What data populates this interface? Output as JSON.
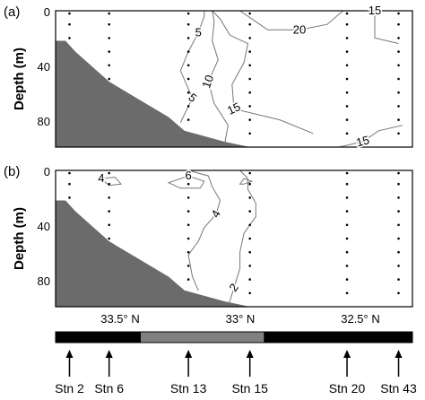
{
  "figure": {
    "panel_labels": [
      "(a)",
      "(b)"
    ],
    "ylabel": "Depth (m)",
    "y_ticks": [
      "0",
      "40",
      "80"
    ],
    "x_ticks": [
      "33.5° N",
      "33° N",
      "32.5° N"
    ],
    "stations": [
      "Stn 2",
      "Stn 6",
      "Stn 13",
      "Stn 15",
      "Stn 20",
      "Stn 43"
    ]
  },
  "chart_data": [
    {
      "type": "contour",
      "panel": "(a)",
      "xlabel": "",
      "ylabel": "Depth (m)",
      "ylim": [
        100,
        0
      ],
      "x_direction": "latitude decreasing to the right",
      "x_ticks": [
        33.5,
        33.0,
        32.5
      ],
      "y_ticks": [
        0,
        40,
        80
      ],
      "contour_labels": [
        "5",
        "20",
        "15",
        "10",
        "5",
        "15",
        "15"
      ],
      "contours": [
        {
          "level": 5,
          "points": [
            [
              33.22,
              82
            ],
            [
              33.16,
              64
            ],
            [
              33.22,
              44
            ],
            [
              33.18,
              30
            ],
            [
              33.13,
              16
            ],
            [
              33.1,
              4
            ],
            [
              33.1,
              0
            ]
          ]
        },
        {
          "level": 10,
          "points": [
            [
              33.0,
              100
            ],
            [
              32.98,
              84
            ],
            [
              33.05,
              68
            ],
            [
              33.08,
              52
            ],
            [
              33.03,
              36
            ],
            [
              33.06,
              22
            ],
            [
              33.05,
              8
            ],
            [
              33.06,
              0
            ]
          ]
        },
        {
          "level": 15,
          "points": [
            [
              33.06,
              0
            ],
            [
              33.02,
              6
            ],
            [
              32.97,
              18
            ],
            [
              32.88,
              24
            ],
            [
              32.9,
              38
            ],
            [
              32.96,
              54
            ],
            [
              32.95,
              72
            ],
            [
              32.72,
              80
            ],
            [
              32.55,
              90
            ]
          ]
        },
        {
          "level": 20,
          "points": [
            [
              32.92,
              0
            ],
            [
              32.86,
              6
            ],
            [
              32.78,
              14
            ],
            [
              32.62,
              14
            ],
            [
              32.48,
              10
            ],
            [
              32.4,
              0
            ]
          ]
        },
        {
          "level": 15,
          "points": [
            [
              32.24,
              0
            ],
            [
              32.24,
              10
            ],
            [
              32.24,
              20
            ],
            [
              32.12,
              24
            ]
          ]
        },
        {
          "level": 15,
          "points": [
            [
              32.42,
              100
            ],
            [
              32.3,
              96
            ],
            [
              32.22,
              88
            ],
            [
              32.1,
              84
            ]
          ]
        }
      ],
      "bathymetry_depth_m": [
        [
          33.8,
          22
        ],
        [
          33.75,
          30
        ],
        [
          33.58,
          52
        ],
        [
          33.28,
          78
        ],
        [
          33.2,
          88
        ],
        [
          33.0,
          96
        ],
        [
          32.87,
          100
        ]
      ],
      "sample_profiles": [
        {
          "lat": 33.78,
          "depths": [
            2,
            10,
            20
          ]
        },
        {
          "lat": 33.58,
          "depths": [
            2,
            10,
            20,
            30,
            40,
            50
          ]
        },
        {
          "lat": 33.18,
          "depths": [
            2,
            10,
            20,
            30,
            40,
            50,
            60,
            70,
            80
          ]
        },
        {
          "lat": 32.87,
          "depths": [
            2,
            10,
            20,
            30,
            40,
            50,
            60,
            70,
            80,
            90
          ]
        },
        {
          "lat": 32.38,
          "depths": [
            2,
            10,
            20,
            30,
            40,
            50,
            60,
            70,
            80,
            90
          ]
        },
        {
          "lat": 32.12,
          "depths": [
            2,
            10,
            20,
            30,
            40,
            50,
            60,
            70,
            80,
            90
          ]
        }
      ]
    },
    {
      "type": "contour",
      "panel": "(b)",
      "xlabel": "",
      "ylabel": "Depth (m)",
      "ylim": [
        100,
        0
      ],
      "x_direction": "latitude decreasing to the right",
      "x_ticks": [
        33.5,
        33.0,
        32.5
      ],
      "y_ticks": [
        0,
        40,
        80
      ],
      "contour_labels": [
        "4",
        "6",
        "4",
        "2"
      ],
      "contours": [
        {
          "level": 4,
          "points": [
            [
              33.62,
              6
            ],
            [
              33.58,
              11
            ],
            [
              33.52,
              10
            ],
            [
              33.55,
              5
            ],
            [
              33.62,
              6
            ]
          ],
          "closed": true
        },
        {
          "level": 6,
          "points": [
            [
              33.28,
              9
            ],
            [
              33.22,
              13
            ],
            [
              33.12,
              13
            ],
            [
              33.1,
              8
            ],
            [
              33.18,
              4
            ],
            [
              33.28,
              9
            ]
          ],
          "closed": true
        },
        {
          "level": 4,
          "points": [
            [
              33.18,
              0
            ],
            [
              33.08,
              4
            ],
            [
              33.06,
              12
            ],
            [
              33.02,
              22
            ],
            [
              33.04,
              32
            ],
            [
              33.1,
              42
            ],
            [
              33.13,
              52
            ],
            [
              33.18,
              62
            ],
            [
              33.16,
              78
            ],
            [
              33.13,
              88
            ]
          ]
        },
        {
          "level": 2,
          "points": [
            [
              32.92,
              0
            ],
            [
              32.88,
              6
            ],
            [
              32.88,
              14
            ],
            [
              32.84,
              24
            ],
            [
              32.84,
              34
            ],
            [
              32.9,
              46
            ],
            [
              32.92,
              60
            ],
            [
              32.92,
              72
            ],
            [
              32.95,
              86
            ],
            [
              32.98,
              100
            ]
          ]
        },
        {
          "level": 2,
          "points": [
            [
              32.9,
              10
            ],
            [
              32.86,
              8
            ],
            [
              32.9,
              6
            ],
            [
              32.92,
              10
            ]
          ],
          "closed": true
        }
      ],
      "bathymetry_depth_m": [
        [
          33.8,
          22
        ],
        [
          33.75,
          30
        ],
        [
          33.58,
          52
        ],
        [
          33.28,
          78
        ],
        [
          33.2,
          88
        ],
        [
          33.0,
          96
        ],
        [
          32.87,
          100
        ]
      ],
      "sample_profiles": [
        {
          "lat": 33.78,
          "depths": [
            2,
            10,
            20
          ]
        },
        {
          "lat": 33.58,
          "depths": [
            2,
            10,
            20,
            30,
            40,
            50
          ]
        },
        {
          "lat": 33.18,
          "depths": [
            2,
            10,
            20,
            30,
            40,
            50,
            60,
            70,
            80
          ]
        },
        {
          "lat": 32.87,
          "depths": [
            2,
            10,
            20,
            30,
            40,
            50,
            60,
            70,
            80,
            90
          ]
        },
        {
          "lat": 32.38,
          "depths": [
            2,
            10,
            20,
            30,
            40,
            50,
            60,
            70,
            80,
            90
          ]
        },
        {
          "lat": 32.12,
          "depths": [
            2,
            10,
            20,
            30,
            40,
            50,
            60,
            70,
            80,
            90
          ]
        }
      ]
    },
    {
      "type": "bar",
      "description_of_segments": "black / gray / black strip along the transect",
      "segments": [
        {
          "from": 33.85,
          "to": 33.42,
          "color": "#000000"
        },
        {
          "from": 33.42,
          "to": 32.8,
          "color": "#808080"
        },
        {
          "from": 32.8,
          "to": 32.05,
          "color": "#000000"
        }
      ],
      "station_arrows": [
        {
          "label": "Stn 2",
          "lat": 33.78
        },
        {
          "label": "Stn 6",
          "lat": 33.58
        },
        {
          "label": "Stn 13",
          "lat": 33.18
        },
        {
          "label": "Stn 15",
          "lat": 32.87
        },
        {
          "label": "Stn 20",
          "lat": 32.38
        },
        {
          "label": "Stn 43",
          "lat": 32.12
        }
      ]
    }
  ],
  "colors": {
    "bathymetry": "#6b6b6b",
    "contour": "#777777",
    "gray_segment": "#808080",
    "black": "#000000"
  }
}
